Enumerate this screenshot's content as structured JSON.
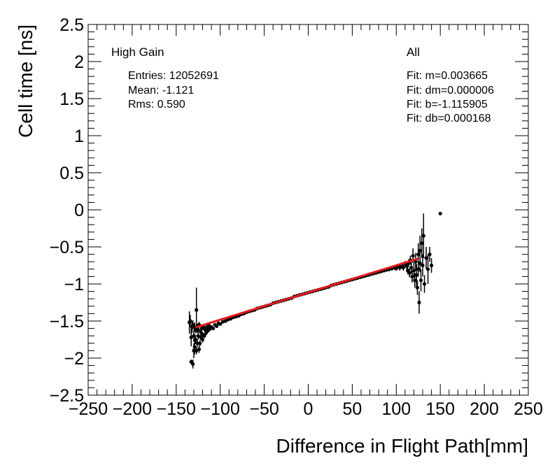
{
  "chart_data": {
    "type": "scatter",
    "xlabel": "Difference in Flight Path[mm]",
    "ylabel": "Cell time [ns]",
    "xlim": [
      -250,
      250
    ],
    "ylim": [
      -2.5,
      2.5
    ],
    "x_ticks": [
      -250,
      -200,
      -150,
      -100,
      -50,
      0,
      50,
      100,
      150,
      200,
      250
    ],
    "x_tick_labels": [
      "−250",
      "−200",
      "−150",
      "−100",
      "−50",
      "0",
      "50",
      "100",
      "150",
      "200",
      "250"
    ],
    "y_ticks": [
      2.5,
      2,
      1.5,
      1,
      0.5,
      0,
      -0.5,
      -1,
      -1.5,
      -2,
      -2.5
    ],
    "y_tick_labels": [
      "2.5",
      "2",
      "1.5",
      "1",
      "0.5",
      "0",
      "−0.5",
      "−1",
      "−1.5",
      "−2",
      "−2.5"
    ],
    "grid": false,
    "annotations": {
      "gain": "High Gain",
      "entries": "Entries: 12052691",
      "mean": "Mean: -1.121",
      "rms": "Rms: 0.590",
      "selection": "All",
      "fit_m": "Fit: m=0.003665",
      "fit_dm": "Fit: dm=0.000006",
      "fit_b": "Fit: b=-1.115905",
      "fit_db": "Fit: db=0.000168"
    },
    "fit": {
      "m": 0.003665,
      "b": -1.115905,
      "x_range": [
        -128,
        125
      ],
      "color": "#e41a1c"
    },
    "series": [
      {
        "marker_color": "#000000",
        "points": [
          [
            -135,
            -1.52,
            0.15
          ],
          [
            -134,
            -1.5,
            0.08
          ],
          [
            -133,
            -1.72,
            0.12
          ],
          [
            -133,
            -2.05,
            0.03
          ],
          [
            -132,
            -1.58,
            0.08
          ],
          [
            -131,
            -2.08,
            0.06
          ],
          [
            -131,
            -1.55,
            0.06
          ],
          [
            -130,
            -1.9,
            0.1
          ],
          [
            -130,
            -1.7,
            0.08
          ],
          [
            -129,
            -1.58,
            0.06
          ],
          [
            -129,
            -1.85,
            0.1
          ],
          [
            -128,
            -1.62,
            0.05
          ],
          [
            -128,
            -1.75,
            0.06
          ],
          [
            -127,
            -1.35,
            0.3
          ],
          [
            -127,
            -1.9,
            0.05
          ],
          [
            -126,
            -1.6,
            0.06
          ],
          [
            -126,
            -1.8,
            0.05
          ],
          [
            -125,
            -1.7,
            0.05
          ],
          [
            -125,
            -1.62,
            0.04
          ],
          [
            -124,
            -1.88,
            0.05
          ],
          [
            -124,
            -1.55,
            0.04
          ],
          [
            -123,
            -1.8,
            0.04
          ],
          [
            -122,
            -1.65,
            0.05
          ],
          [
            -122,
            -1.72,
            0.04
          ],
          [
            -121,
            -1.6,
            0.04
          ],
          [
            -120,
            -1.75,
            0.04
          ],
          [
            -120,
            -1.68,
            0.03
          ],
          [
            -119,
            -1.58,
            0.04
          ],
          [
            -118,
            -1.7,
            0.03
          ],
          [
            -117,
            -1.62,
            0.03
          ],
          [
            -116,
            -1.66,
            0.03
          ],
          [
            -115,
            -1.58,
            0.03
          ],
          [
            -114,
            -1.63,
            0.03
          ],
          [
            -113,
            -1.56,
            0.03
          ],
          [
            -112,
            -1.61,
            0.02
          ],
          [
            -110,
            -1.58,
            0.02
          ],
          [
            -108,
            -1.6,
            0.02
          ],
          [
            -106,
            -1.55,
            0.02
          ],
          [
            -104,
            -1.57,
            0.02
          ],
          [
            -102,
            -1.53,
            0.02
          ],
          [
            -100,
            -1.54,
            0.02
          ],
          [
            -97,
            -1.51,
            0.02
          ],
          [
            -94,
            -1.5,
            0.02
          ],
          [
            -91,
            -1.48,
            0.02
          ],
          [
            -88,
            -1.47,
            0.02
          ],
          [
            -85,
            -1.45,
            0.02
          ],
          [
            -82,
            -1.44,
            0.02
          ],
          [
            -79,
            -1.43,
            0.02
          ],
          [
            -76,
            -1.41,
            0.02
          ],
          [
            -73,
            -1.4,
            0.02
          ],
          [
            -70,
            -1.38,
            0.02
          ],
          [
            -67,
            -1.37,
            0.02
          ],
          [
            -64,
            -1.36,
            0.02
          ],
          [
            -61,
            -1.35,
            0.02
          ],
          [
            -58,
            -1.33,
            0.02
          ],
          [
            -55,
            -1.32,
            0.02
          ],
          [
            -52,
            -1.31,
            0.02
          ],
          [
            -49,
            -1.3,
            0.02
          ],
          [
            -46,
            -1.29,
            0.02
          ],
          [
            -43,
            -1.28,
            0.02
          ],
          [
            -40,
            -1.26,
            0.02
          ],
          [
            -37,
            -1.25,
            0.02
          ],
          [
            -34,
            -1.24,
            0.02
          ],
          [
            -31,
            -1.23,
            0.02
          ],
          [
            -28,
            -1.22,
            0.02
          ],
          [
            -25,
            -1.21,
            0.02
          ],
          [
            -22,
            -1.2,
            0.02
          ],
          [
            -19,
            -1.19,
            0.02
          ],
          [
            -16,
            -1.17,
            0.02
          ],
          [
            -13,
            -1.16,
            0.02
          ],
          [
            -10,
            -1.15,
            0.02
          ],
          [
            -7,
            -1.14,
            0.02
          ],
          [
            -4,
            -1.13,
            0.02
          ],
          [
            -1,
            -1.12,
            0.02
          ],
          [
            2,
            -1.11,
            0.02
          ],
          [
            5,
            -1.1,
            0.02
          ],
          [
            8,
            -1.09,
            0.02
          ],
          [
            11,
            -1.08,
            0.02
          ],
          [
            14,
            -1.07,
            0.02
          ],
          [
            17,
            -1.06,
            0.02
          ],
          [
            20,
            -1.05,
            0.02
          ],
          [
            23,
            -1.04,
            0.02
          ],
          [
            26,
            -1.02,
            0.02
          ],
          [
            29,
            -1.01,
            0.02
          ],
          [
            32,
            -1.0,
            0.02
          ],
          [
            35,
            -0.99,
            0.02
          ],
          [
            38,
            -0.98,
            0.02
          ],
          [
            41,
            -0.97,
            0.02
          ],
          [
            44,
            -0.96,
            0.02
          ],
          [
            47,
            -0.95,
            0.02
          ],
          [
            50,
            -0.94,
            0.02
          ],
          [
            53,
            -0.93,
            0.02
          ],
          [
            56,
            -0.92,
            0.02
          ],
          [
            59,
            -0.91,
            0.02
          ],
          [
            62,
            -0.9,
            0.02
          ],
          [
            65,
            -0.89,
            0.02
          ],
          [
            68,
            -0.88,
            0.02
          ],
          [
            71,
            -0.87,
            0.02
          ],
          [
            74,
            -0.86,
            0.02
          ],
          [
            77,
            -0.85,
            0.02
          ],
          [
            80,
            -0.84,
            0.02
          ],
          [
            83,
            -0.83,
            0.02
          ],
          [
            86,
            -0.82,
            0.02
          ],
          [
            89,
            -0.81,
            0.02
          ],
          [
            92,
            -0.8,
            0.03
          ],
          [
            95,
            -0.79,
            0.03
          ],
          [
            98,
            -0.78,
            0.03
          ],
          [
            100,
            -0.79,
            0.03
          ],
          [
            102,
            -0.76,
            0.03
          ],
          [
            104,
            -0.78,
            0.04
          ],
          [
            106,
            -0.75,
            0.04
          ],
          [
            108,
            -0.78,
            0.04
          ],
          [
            110,
            -0.73,
            0.04
          ],
          [
            112,
            -0.76,
            0.05
          ],
          [
            113,
            -0.82,
            0.05
          ],
          [
            114,
            -0.72,
            0.05
          ],
          [
            115,
            -0.85,
            0.06
          ],
          [
            116,
            -0.68,
            0.06
          ],
          [
            117,
            -0.78,
            0.08
          ],
          [
            118,
            -0.9,
            0.08
          ],
          [
            119,
            -0.62,
            0.1
          ],
          [
            120,
            -0.82,
            0.1
          ],
          [
            121,
            -0.95,
            0.1
          ],
          [
            122,
            -0.7,
            0.12
          ],
          [
            123,
            -0.88,
            0.15
          ],
          [
            124,
            -1.05,
            0.1
          ],
          [
            125,
            -0.6,
            0.15
          ],
          [
            125,
            -0.8,
            0.1
          ],
          [
            126,
            -1.25,
            0.15
          ],
          [
            127,
            -0.55,
            0.2
          ],
          [
            127,
            -0.72,
            0.12
          ],
          [
            128,
            -0.95,
            0.15
          ],
          [
            129,
            -0.45,
            0.2
          ],
          [
            130,
            -0.75,
            0.15
          ],
          [
            131,
            -0.35,
            0.3
          ],
          [
            132,
            -1.0,
            0.12
          ],
          [
            134,
            -0.65,
            0.15
          ],
          [
            136,
            -0.8,
            0.2
          ],
          [
            138,
            -0.6,
            0.1
          ],
          [
            140,
            -0.75,
            0.1
          ],
          [
            150,
            -0.05,
            0.0
          ]
        ]
      }
    ]
  }
}
